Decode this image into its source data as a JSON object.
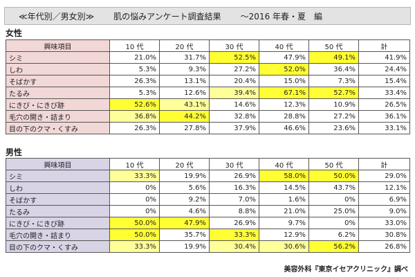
{
  "title": {
    "category": "≪年代別／男女別≫",
    "main": "肌の悩みアンケート調査結果",
    "sub": "～2016 年春・夏　編"
  },
  "columns": [
    "興味項目",
    "10 代",
    "20 代",
    "30 代",
    "40 代",
    "50 代",
    "計"
  ],
  "female": {
    "label": "女性",
    "rows": [
      {
        "item": "シミ",
        "values": [
          "21.0%",
          "31.7%",
          "52.5%",
          "47.9%",
          "49.1%",
          "41.9%"
        ],
        "highlight": [
          "",
          "",
          "strong",
          "",
          "strong",
          ""
        ]
      },
      {
        "item": "しわ",
        "values": [
          "5.3%",
          "9.3%",
          "27.2%",
          "52.0%",
          "36.4%",
          "24.4%"
        ],
        "highlight": [
          "",
          "",
          "",
          "strong",
          "",
          ""
        ]
      },
      {
        "item": "そばかす",
        "values": [
          "26.3%",
          "13.1%",
          "20.4%",
          "15.0%",
          "7.3%",
          "15.4%"
        ],
        "highlight": [
          "",
          "",
          "",
          "",
          "",
          ""
        ]
      },
      {
        "item": "たるみ",
        "values": [
          "5.3%",
          "12.6%",
          "39.4%",
          "67.1%",
          "52.7%",
          "33.4%"
        ],
        "highlight": [
          "",
          "",
          "light",
          "strong",
          "strong",
          ""
        ]
      },
      {
        "item": "にきび・にきび跡",
        "values": [
          "52.6%",
          "43.1%",
          "14.6%",
          "12.3%",
          "10.9%",
          "26.5%"
        ],
        "highlight": [
          "strong",
          "light",
          "",
          "",
          "",
          ""
        ]
      },
      {
        "item": "毛穴の開き・詰まり",
        "values": [
          "36.8%",
          "44.2%",
          "32.8%",
          "28.8%",
          "27.2%",
          "36.1%"
        ],
        "highlight": [
          "light",
          "strong",
          "",
          "",
          "",
          ""
        ]
      },
      {
        "item": "目の下のクマ・くすみ",
        "values": [
          "26.3%",
          "27.8%",
          "37.9%",
          "46.6%",
          "23.6%",
          "33.1%"
        ],
        "highlight": [
          "",
          "",
          "",
          "",
          "",
          ""
        ]
      }
    ]
  },
  "male": {
    "label": "男性",
    "rows": [
      {
        "item": "シミ",
        "values": [
          "33.3%",
          "19.9%",
          "26.9%",
          "58.0%",
          "50.0%",
          "29.0%"
        ],
        "highlight": [
          "light",
          "",
          "",
          "strong",
          "strong",
          ""
        ]
      },
      {
        "item": "しわ",
        "values": [
          "0%",
          "5.6%",
          "16.3%",
          "14.5%",
          "43.7%",
          "12.1%"
        ],
        "highlight": [
          "",
          "",
          "",
          "",
          "",
          ""
        ]
      },
      {
        "item": "そばかす",
        "values": [
          "0%",
          "9.2%",
          "7.0%",
          "1.6%",
          "0%",
          "6.9%"
        ],
        "highlight": [
          "",
          "",
          "",
          "",
          "",
          ""
        ]
      },
      {
        "item": "たるみ",
        "values": [
          "0%",
          "4.6%",
          "8.8%",
          "21.0%",
          "25.0%",
          "9.0%"
        ],
        "highlight": [
          "",
          "",
          "",
          "",
          "",
          ""
        ]
      },
      {
        "item": "にきび・にきび跡",
        "values": [
          "50.0%",
          "47.9%",
          "26.9%",
          "9.7%",
          "0%",
          "33.0%"
        ],
        "highlight": [
          "strong",
          "strong",
          "",
          "",
          "",
          ""
        ]
      },
      {
        "item": "毛穴の開き・詰まり",
        "values": [
          "50.0%",
          "35.7%",
          "33.3%",
          "12.9%",
          "6.2%",
          "30.8%"
        ],
        "highlight": [
          "strong",
          "",
          "strong",
          "",
          "",
          ""
        ]
      },
      {
        "item": "目の下のクマ・くすみ",
        "values": [
          "33.3%",
          "19.9%",
          "30.4%",
          "30.6%",
          "56.2%",
          "26.8%"
        ],
        "highlight": [
          "light",
          "",
          "light",
          "light",
          "strong",
          ""
        ]
      }
    ]
  },
  "colors": {
    "highlight_strong": "#ffff33",
    "highlight_light": "#ffff99",
    "female_label_bg": "#f2d7d7",
    "male_label_bg": "#d9d3e6",
    "title_bg": "#e3e3e3"
  },
  "footer": "美容外科『東京イセアクリニック』調べ"
}
